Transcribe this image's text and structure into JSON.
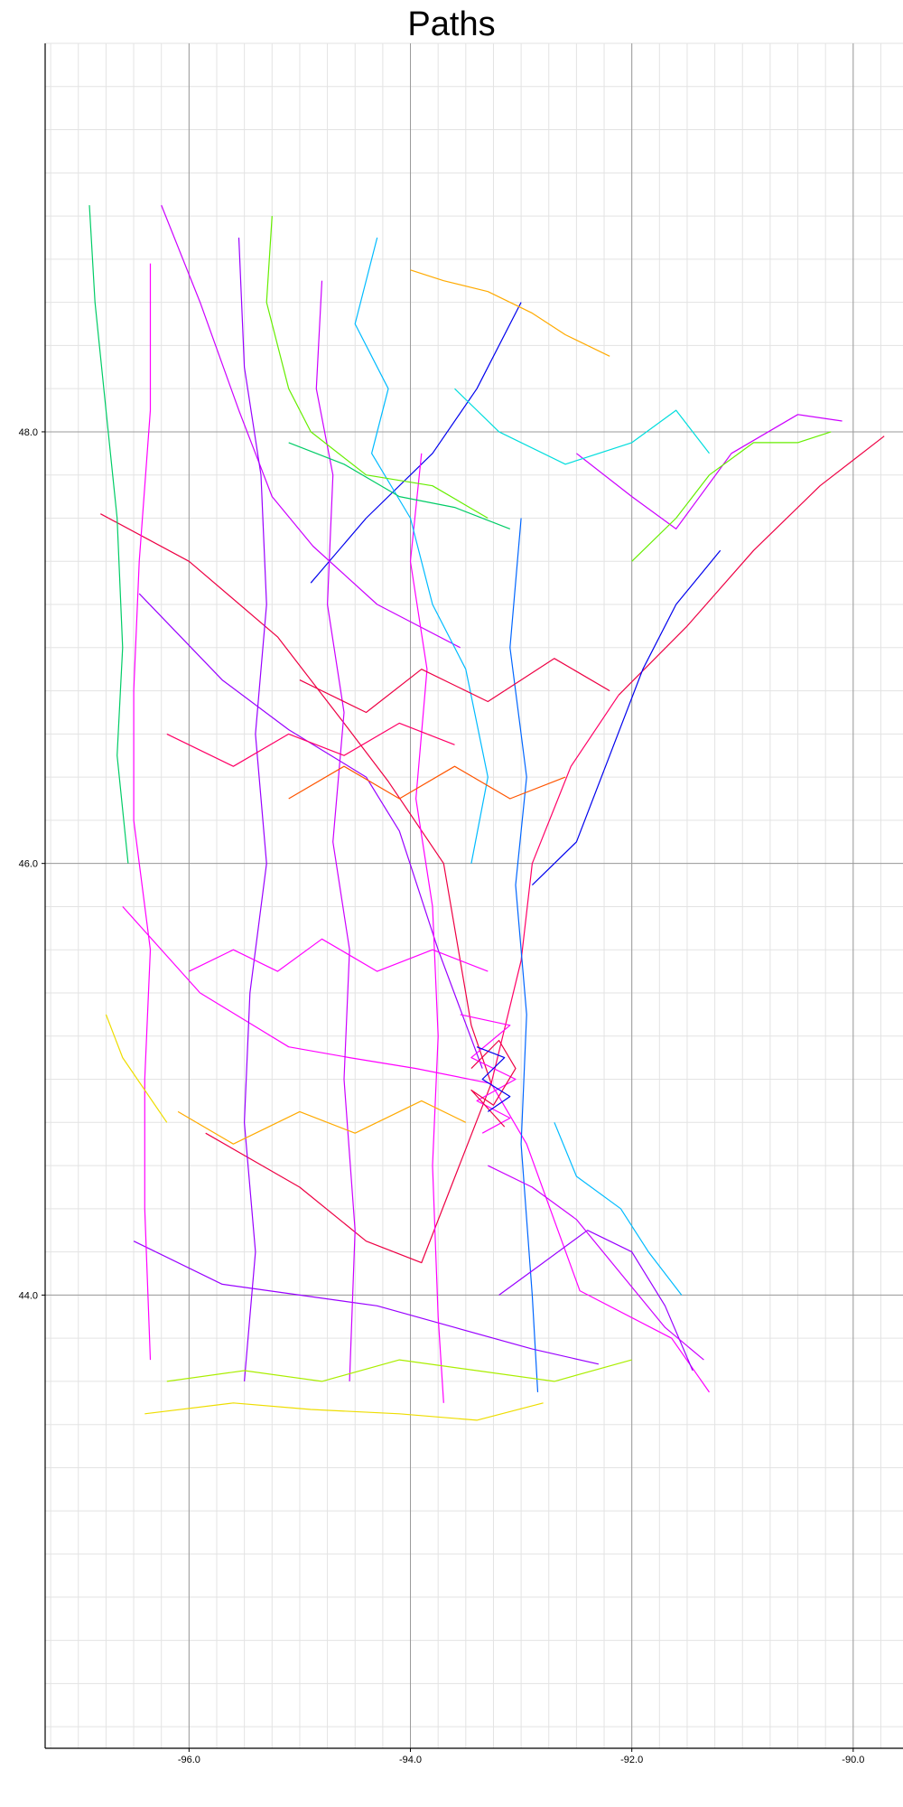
{
  "chart_data": {
    "type": "line",
    "title": "Paths",
    "xlabel": "",
    "ylabel": "",
    "xlim": [
      -97.3,
      -89.55
    ],
    "ylim": [
      41.9,
      49.8
    ],
    "major_x_ticks": [
      -96.0,
      -94.0,
      -92.0,
      -90.0
    ],
    "minor_x_step": 0.25,
    "major_y_ticks": [
      44.0,
      46.0,
      48.0
    ],
    "minor_y_step": 0.2,
    "x_tick_labels": [
      "-96.0",
      "-94.0",
      "-92.0",
      "-90.0"
    ],
    "y_tick_labels": [
      "44.0",
      "46.0",
      "48.0"
    ],
    "grid": true,
    "legend": "none",
    "palette": [
      "#ff00ff",
      "#cc00ff",
      "#9900ff",
      "#ff0066",
      "#ee0044",
      "#0000ee",
      "#0066ff",
      "#00bbff",
      "#00dddd",
      "#00cc66",
      "#66ee00",
      "#aaee00",
      "#eedd00",
      "#ffaa00",
      "#ff5500"
    ],
    "series": [
      {
        "color": "#ee0044",
        "points": [
          [
            -96.8,
            47.62
          ],
          [
            -96.0,
            47.4
          ],
          [
            -95.2,
            47.05
          ],
          [
            -94.6,
            46.65
          ],
          [
            -94.2,
            46.38
          ],
          [
            -93.7,
            46.0
          ],
          [
            -93.45,
            45.25
          ],
          [
            -93.27,
            44.98
          ]
        ]
      },
      {
        "color": "#ff00ff",
        "points": [
          [
            -93.27,
            44.98
          ],
          [
            -92.95,
            44.7
          ],
          [
            -92.47,
            44.02
          ],
          [
            -91.64,
            43.8
          ],
          [
            -91.3,
            43.55
          ]
        ]
      },
      {
        "color": "#ee0044",
        "points": [
          [
            -92.12,
            46.78
          ],
          [
            -91.5,
            47.1
          ],
          [
            -90.9,
            47.45
          ],
          [
            -90.3,
            47.75
          ],
          [
            -89.72,
            47.98
          ]
        ]
      },
      {
        "color": "#ff0066",
        "points": [
          [
            -93.27,
            44.98
          ],
          [
            -93.0,
            45.55
          ],
          [
            -92.9,
            46.0
          ],
          [
            -92.55,
            46.45
          ],
          [
            -92.12,
            46.78
          ]
        ]
      },
      {
        "color": "#9900ff",
        "points": [
          [
            -96.45,
            47.25
          ],
          [
            -95.7,
            46.85
          ],
          [
            -95.1,
            46.62
          ],
          [
            -94.4,
            46.4
          ],
          [
            -94.1,
            46.15
          ],
          [
            -93.75,
            45.6
          ],
          [
            -93.35,
            45.05
          ]
        ]
      },
      {
        "color": "#cc00ff",
        "points": [
          [
            -96.25,
            49.05
          ],
          [
            -95.9,
            48.6
          ],
          [
            -95.55,
            48.1
          ],
          [
            -95.25,
            47.7
          ],
          [
            -94.88,
            47.47
          ],
          [
            -94.3,
            47.2
          ],
          [
            -93.55,
            47.0
          ]
        ]
      },
      {
        "color": "#ff00ff",
        "points": [
          [
            -96.6,
            45.8
          ],
          [
            -95.9,
            45.4
          ],
          [
            -95.1,
            45.15
          ],
          [
            -94.55,
            45.1
          ],
          [
            -93.95,
            45.05
          ],
          [
            -93.27,
            44.98
          ]
        ]
      },
      {
        "color": "#ee0044",
        "points": [
          [
            -95.85,
            44.75
          ],
          [
            -95.0,
            44.5
          ],
          [
            -94.4,
            44.25
          ],
          [
            -93.9,
            44.15
          ],
          [
            -93.27,
            44.98
          ]
        ]
      },
      {
        "color": "#9900ff",
        "points": [
          [
            -96.5,
            44.25
          ],
          [
            -95.7,
            44.05
          ],
          [
            -95.0,
            44.0
          ],
          [
            -94.3,
            43.95
          ],
          [
            -93.6,
            43.85
          ],
          [
            -92.9,
            43.75
          ],
          [
            -92.3,
            43.68
          ]
        ]
      },
      {
        "color": "#0000ee",
        "points": [
          [
            -93.0,
            48.6
          ],
          [
            -93.4,
            48.2
          ],
          [
            -93.8,
            47.9
          ],
          [
            -94.4,
            47.6
          ],
          [
            -94.9,
            47.3
          ]
        ]
      },
      {
        "color": "#cc00ff",
        "points": [
          [
            -92.5,
            47.9
          ],
          [
            -92.0,
            47.7
          ],
          [
            -91.6,
            47.55
          ],
          [
            -91.1,
            47.9
          ],
          [
            -90.5,
            48.08
          ],
          [
            -90.1,
            48.05
          ]
        ]
      },
      {
        "color": "#ff00ff",
        "points": [
          [
            -96.35,
            48.78
          ],
          [
            -96.35,
            48.1
          ],
          [
            -96.45,
            47.4
          ],
          [
            -96.5,
            46.8
          ],
          [
            -96.5,
            46.2
          ],
          [
            -96.35,
            45.6
          ],
          [
            -96.4,
            45.0
          ],
          [
            -96.4,
            44.4
          ],
          [
            -96.35,
            43.7
          ]
        ]
      },
      {
        "color": "#9900ff",
        "points": [
          [
            -95.55,
            48.9
          ],
          [
            -95.5,
            48.3
          ],
          [
            -95.35,
            47.8
          ],
          [
            -95.3,
            47.2
          ],
          [
            -95.4,
            46.6
          ],
          [
            -95.3,
            46.0
          ],
          [
            -95.45,
            45.4
          ],
          [
            -95.5,
            44.8
          ],
          [
            -95.4,
            44.2
          ],
          [
            -95.5,
            43.6
          ]
        ]
      },
      {
        "color": "#cc00ff",
        "points": [
          [
            -94.8,
            48.7
          ],
          [
            -94.85,
            48.2
          ],
          [
            -94.7,
            47.8
          ],
          [
            -94.75,
            47.2
          ],
          [
            -94.6,
            46.7
          ],
          [
            -94.7,
            46.1
          ],
          [
            -94.55,
            45.6
          ],
          [
            -94.6,
            45.0
          ],
          [
            -94.5,
            44.3
          ],
          [
            -94.55,
            43.6
          ]
        ]
      },
      {
        "color": "#ff00ff",
        "points": [
          [
            -93.9,
            47.9
          ],
          [
            -94.0,
            47.4
          ],
          [
            -93.85,
            46.9
          ],
          [
            -93.95,
            46.3
          ],
          [
            -93.8,
            45.8
          ],
          [
            -93.75,
            45.2
          ],
          [
            -93.8,
            44.6
          ],
          [
            -93.75,
            43.9
          ],
          [
            -93.7,
            43.5
          ]
        ]
      },
      {
        "color": "#0066ff",
        "points": [
          [
            -93.0,
            47.6
          ],
          [
            -93.1,
            47.0
          ],
          [
            -92.95,
            46.4
          ],
          [
            -93.05,
            45.9
          ],
          [
            -92.95,
            45.3
          ],
          [
            -93.0,
            44.7
          ],
          [
            -92.9,
            44.0
          ],
          [
            -92.85,
            43.55
          ]
        ]
      },
      {
        "color": "#00bbff",
        "points": [
          [
            -94.3,
            48.9
          ],
          [
            -94.5,
            48.5
          ],
          [
            -94.2,
            48.2
          ],
          [
            -94.35,
            47.9
          ],
          [
            -94.0,
            47.6
          ],
          [
            -93.8,
            47.2
          ],
          [
            -93.5,
            46.9
          ],
          [
            -93.3,
            46.4
          ],
          [
            -93.45,
            46.0
          ]
        ]
      },
      {
        "color": "#00dddd",
        "points": [
          [
            -93.6,
            48.2
          ],
          [
            -93.2,
            48.0
          ],
          [
            -92.6,
            47.85
          ],
          [
            -92.0,
            47.95
          ],
          [
            -91.6,
            48.1
          ],
          [
            -91.3,
            47.9
          ]
        ]
      },
      {
        "color": "#00cc66",
        "points": [
          [
            -96.9,
            49.05
          ],
          [
            -96.85,
            48.6
          ],
          [
            -96.75,
            48.1
          ],
          [
            -96.65,
            47.6
          ],
          [
            -96.6,
            47.0
          ],
          [
            -96.65,
            46.5
          ],
          [
            -96.55,
            46.0
          ]
        ]
      },
      {
        "color": "#66ee00",
        "points": [
          [
            -95.25,
            49.0
          ],
          [
            -95.3,
            48.6
          ],
          [
            -95.1,
            48.2
          ],
          [
            -94.9,
            48.0
          ],
          [
            -94.4,
            47.8
          ],
          [
            -93.8,
            47.75
          ],
          [
            -93.3,
            47.6
          ]
        ]
      },
      {
        "color": "#aaee00",
        "points": [
          [
            -96.2,
            43.6
          ],
          [
            -95.5,
            43.65
          ],
          [
            -94.8,
            43.6
          ],
          [
            -94.1,
            43.7
          ],
          [
            -93.4,
            43.65
          ],
          [
            -92.7,
            43.6
          ],
          [
            -92.0,
            43.7
          ]
        ]
      },
      {
        "color": "#eedd00",
        "points": [
          [
            -96.4,
            43.45
          ],
          [
            -95.6,
            43.5
          ],
          [
            -94.9,
            43.47
          ],
          [
            -94.1,
            43.45
          ],
          [
            -93.4,
            43.42
          ],
          [
            -92.8,
            43.5
          ]
        ]
      },
      {
        "color": "#ffaa00",
        "points": [
          [
            -96.1,
            44.85
          ],
          [
            -95.6,
            44.7
          ],
          [
            -95.0,
            44.85
          ],
          [
            -94.5,
            44.75
          ],
          [
            -93.9,
            44.9
          ],
          [
            -93.5,
            44.8
          ]
        ]
      },
      {
        "color": "#ff5500",
        "points": [
          [
            -95.1,
            46.3
          ],
          [
            -94.6,
            46.45
          ],
          [
            -94.1,
            46.3
          ],
          [
            -93.6,
            46.45
          ],
          [
            -93.1,
            46.3
          ],
          [
            -92.6,
            46.4
          ]
        ]
      },
      {
        "color": "#ee0044",
        "points": [
          [
            -95.0,
            46.85
          ],
          [
            -94.4,
            46.7
          ],
          [
            -93.9,
            46.9
          ],
          [
            -93.3,
            46.75
          ],
          [
            -92.7,
            46.95
          ],
          [
            -92.2,
            46.8
          ]
        ]
      },
      {
        "color": "#0000ee",
        "points": [
          [
            -92.9,
            45.9
          ],
          [
            -92.5,
            46.1
          ],
          [
            -92.2,
            46.5
          ],
          [
            -91.9,
            46.9
          ],
          [
            -91.6,
            47.2
          ],
          [
            -91.2,
            47.45
          ]
        ]
      },
      {
        "color": "#9900ff",
        "points": [
          [
            -93.2,
            44.0
          ],
          [
            -92.8,
            44.15
          ],
          [
            -92.4,
            44.3
          ],
          [
            -92.0,
            44.2
          ],
          [
            -91.7,
            43.95
          ],
          [
            -91.45,
            43.65
          ]
        ]
      },
      {
        "color": "#cc00ff",
        "points": [
          [
            -93.3,
            44.6
          ],
          [
            -92.9,
            44.5
          ],
          [
            -92.5,
            44.35
          ],
          [
            -92.1,
            44.1
          ],
          [
            -91.7,
            43.85
          ],
          [
            -91.35,
            43.7
          ]
        ]
      },
      {
        "color": "#00bbff",
        "points": [
          [
            -92.7,
            44.8
          ],
          [
            -92.5,
            44.55
          ],
          [
            -92.1,
            44.4
          ],
          [
            -91.85,
            44.2
          ],
          [
            -91.55,
            44.0
          ]
        ]
      },
      {
        "color": "#ff00ff",
        "points": [
          [
            -96.0,
            45.5
          ],
          [
            -95.6,
            45.6
          ],
          [
            -95.2,
            45.5
          ],
          [
            -94.8,
            45.65
          ],
          [
            -94.3,
            45.5
          ],
          [
            -93.8,
            45.6
          ],
          [
            -93.3,
            45.5
          ]
        ]
      },
      {
        "color": "#ff0066",
        "points": [
          [
            -96.2,
            46.6
          ],
          [
            -95.6,
            46.45
          ],
          [
            -95.1,
            46.6
          ],
          [
            -94.6,
            46.5
          ],
          [
            -94.1,
            46.65
          ],
          [
            -93.6,
            46.55
          ]
        ]
      },
      {
        "color": "#ff00ff",
        "points": [
          [
            -93.55,
            45.3
          ],
          [
            -93.1,
            45.25
          ],
          [
            -93.45,
            45.1
          ],
          [
            -93.05,
            45.0
          ],
          [
            -93.4,
            44.9
          ],
          [
            -93.1,
            44.82
          ],
          [
            -93.35,
            44.75
          ]
        ]
      },
      {
        "color": "#ee0044",
        "points": [
          [
            -93.45,
            45.05
          ],
          [
            -93.2,
            45.18
          ],
          [
            -93.05,
            45.05
          ],
          [
            -93.25,
            44.88
          ],
          [
            -93.45,
            44.95
          ],
          [
            -93.15,
            44.78
          ]
        ]
      },
      {
        "color": "#0000ee",
        "points": [
          [
            -93.4,
            45.15
          ],
          [
            -93.15,
            45.1
          ],
          [
            -93.35,
            45.0
          ],
          [
            -93.1,
            44.92
          ],
          [
            -93.3,
            44.85
          ]
        ]
      },
      {
        "color": "#eedd00",
        "points": [
          [
            -96.75,
            45.3
          ],
          [
            -96.6,
            45.1
          ],
          [
            -96.4,
            44.95
          ],
          [
            -96.2,
            44.8
          ]
        ]
      },
      {
        "color": "#66ee00",
        "points": [
          [
            -92.0,
            47.4
          ],
          [
            -91.6,
            47.6
          ],
          [
            -91.3,
            47.8
          ],
          [
            -90.9,
            47.95
          ],
          [
            -90.5,
            47.95
          ],
          [
            -90.2,
            48.0
          ]
        ]
      },
      {
        "color": "#ffaa00",
        "points": [
          [
            -94.0,
            48.75
          ],
          [
            -93.7,
            48.7
          ],
          [
            -93.3,
            48.65
          ],
          [
            -92.9,
            48.55
          ],
          [
            -92.6,
            48.45
          ],
          [
            -92.2,
            48.35
          ]
        ]
      },
      {
        "color": "#00cc66",
        "points": [
          [
            -95.1,
            47.95
          ],
          [
            -94.6,
            47.85
          ],
          [
            -94.1,
            47.7
          ],
          [
            -93.6,
            47.65
          ],
          [
            -93.1,
            47.55
          ]
        ]
      }
    ]
  }
}
